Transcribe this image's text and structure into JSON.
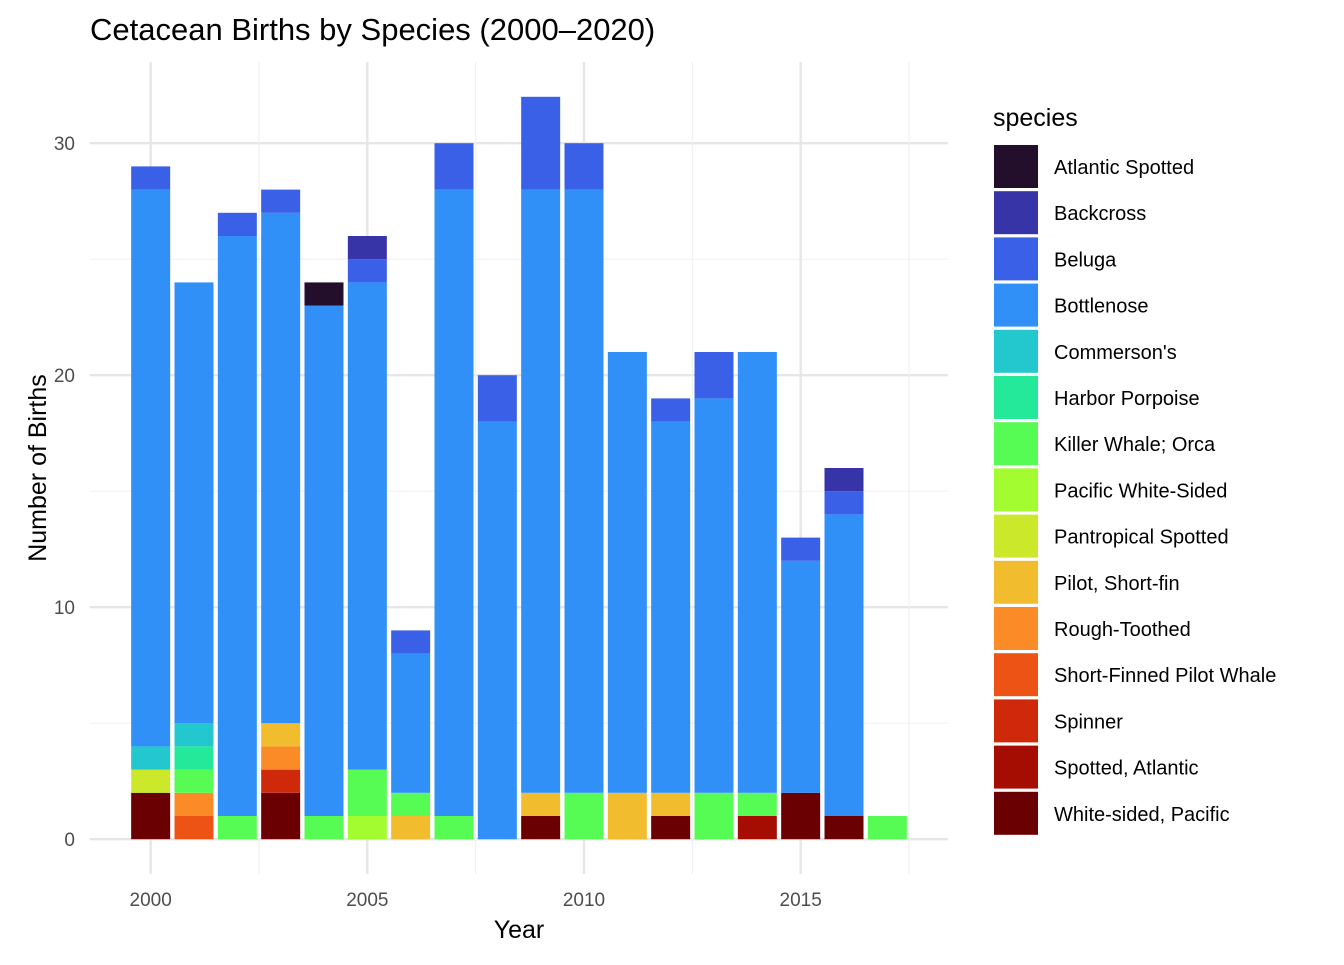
{
  "chart_data": {
    "type": "bar",
    "stacked": true,
    "title": "Cetacean Births by Species (2000–2020)",
    "xlabel": "Year",
    "ylabel": "Number of Births",
    "xlim": [
      1998.6,
      2018.4
    ],
    "ylim": [
      -1.5,
      33.5
    ],
    "x_ticks": [
      2000,
      2005,
      2010,
      2015
    ],
    "y_ticks": [
      0,
      10,
      20,
      30
    ],
    "grid": true,
    "legend": {
      "title": "species",
      "position": "right"
    },
    "stack_order": [
      "White-sided, Pacific",
      "Spotted, Atlantic",
      "Spinner",
      "Short-Finned Pilot Whale",
      "Rough-Toothed",
      "Pilot, Short-fin",
      "Pantropical Spotted",
      "Pacific White-Sided",
      "Killer Whale; Orca",
      "Harbor Porpoise",
      "Commerson's",
      "Bottlenose",
      "Beluga",
      "Backcross",
      "Atlantic Spotted"
    ],
    "series": [
      {
        "name": "Atlantic Spotted",
        "color": "#230E2B",
        "values": {
          "2004": 1
        }
      },
      {
        "name": "Backcross",
        "color": "#3634A6",
        "values": {
          "2005": 1,
          "2016": 1
        }
      },
      {
        "name": "Beluga",
        "color": "#3A60E8",
        "values": {
          "2000": 1,
          "2002": 1,
          "2003": 1,
          "2005": 1,
          "2006": 1,
          "2007": 2,
          "2008": 2,
          "2009": 4,
          "2010": 2,
          "2012": 1,
          "2013": 2,
          "2015": 1,
          "2016": 1
        }
      },
      {
        "name": "Bottlenose",
        "color": "#318FF8",
        "values": {
          "2000": 24,
          "2001": 19,
          "2002": 25,
          "2003": 22,
          "2004": 22,
          "2005": 21,
          "2006": 6,
          "2007": 27,
          "2008": 18,
          "2009": 26,
          "2010": 26,
          "2011": 19,
          "2012": 16,
          "2013": 17,
          "2014": 19,
          "2015": 10,
          "2016": 13
        }
      },
      {
        "name": "Commerson's",
        "color": "#23C7CE",
        "values": {
          "2000": 1,
          "2001": 1
        }
      },
      {
        "name": "Harbor Porpoise",
        "color": "#25E99A",
        "values": {
          "2001": 1
        }
      },
      {
        "name": "Killer Whale; Orca",
        "color": "#56FC53",
        "values": {
          "2001": 1,
          "2002": 1,
          "2004": 1,
          "2005": 2,
          "2006": 1,
          "2007": 1,
          "2010": 2,
          "2013": 2,
          "2014": 1,
          "2017": 1
        }
      },
      {
        "name": "Pacific White-Sided",
        "color": "#A2FC2F",
        "values": {
          "2005": 1
        }
      },
      {
        "name": "Pantropical Spotted",
        "color": "#CCE82B",
        "values": {
          "2000": 1
        }
      },
      {
        "name": "Pilot, Short-fin",
        "color": "#F1BD2F",
        "values": {
          "2003": 1,
          "2006": 1,
          "2009": 1,
          "2011": 2,
          "2012": 1
        }
      },
      {
        "name": "Rough-Toothed",
        "color": "#FA8B26",
        "values": {
          "2001": 1,
          "2003": 1
        }
      },
      {
        "name": "Short-Finned Pilot Whale",
        "color": "#EE5316",
        "values": {
          "2001": 1
        }
      },
      {
        "name": "Spinner",
        "color": "#CF290B",
        "values": {
          "2003": 1
        }
      },
      {
        "name": "Spotted, Atlantic",
        "color": "#A50C02",
        "values": {
          "2014": 1
        }
      },
      {
        "name": "White-sided, Pacific",
        "color": "#6A0001",
        "values": {
          "2000": 2,
          "2003": 2,
          "2009": 1,
          "2012": 1,
          "2015": 2,
          "2016": 1
        }
      }
    ]
  }
}
